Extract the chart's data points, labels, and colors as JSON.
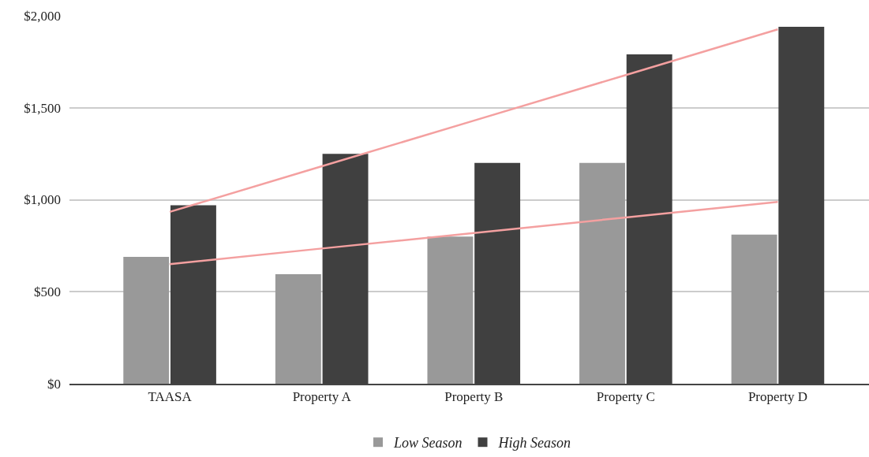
{
  "chart_data": {
    "type": "bar",
    "categories": [
      "TAASA",
      "Property A",
      "Property B",
      "Property C",
      "Property D"
    ],
    "series": [
      {
        "name": "Low Season",
        "color": "#999999",
        "values": [
          690,
          595,
          800,
          1200,
          810
        ]
      },
      {
        "name": "High Season",
        "color": "#404040",
        "values": [
          970,
          1250,
          1200,
          1790,
          1940
        ]
      },
      {
        "type": "line",
        "color": "#f4a0a0",
        "values": [
          650,
          735,
          819,
          904,
          988
        ]
      },
      {
        "type": "line",
        "color": "#f4a0a0",
        "values": [
          934,
          1182,
          1430,
          1678,
          1926
        ]
      }
    ],
    "ylim": [
      0,
      2000
    ],
    "yticks": [
      {
        "value": 0,
        "label": "$0"
      },
      {
        "value": 500,
        "label": "$500"
      },
      {
        "value": 1000,
        "label": "$1,000"
      },
      {
        "value": 1500,
        "label": "$1,500"
      },
      {
        "value": 2000,
        "label": "$2,000"
      }
    ],
    "grid": "y",
    "legend": "bottom"
  }
}
